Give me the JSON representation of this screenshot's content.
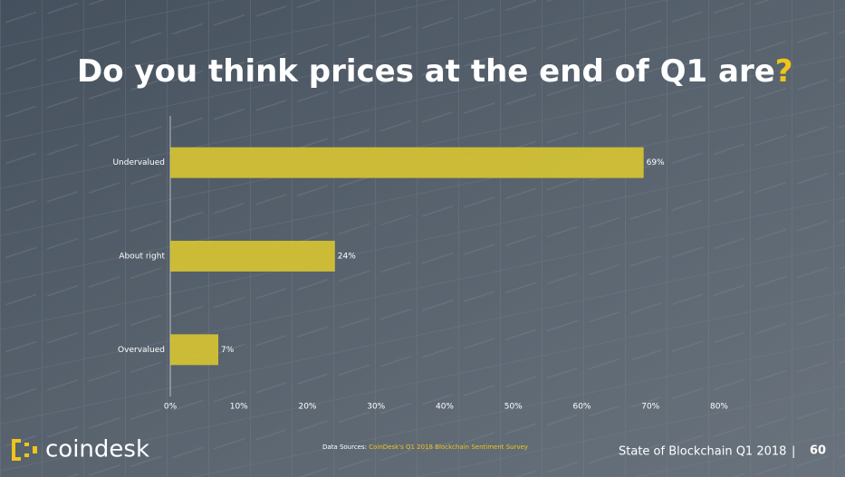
{
  "chart_data": {
    "type": "hbar",
    "title": "Do you think prices at the end of Q1 are",
    "title_punctuation": "?",
    "categories": [
      "Undervalued",
      "About right",
      "Overvalued"
    ],
    "values": [
      69,
      24,
      7
    ],
    "value_labels": [
      "69%",
      "24%",
      "7%"
    ],
    "color": "#d8c531",
    "xlim": [
      0,
      80
    ],
    "xticks": [
      {
        "value": 0,
        "label": "0%"
      },
      {
        "value": 10,
        "label": "10%"
      },
      {
        "value": 20,
        "label": "20%"
      },
      {
        "value": 30,
        "label": "30%"
      },
      {
        "value": 40,
        "label": "40%"
      },
      {
        "value": 50,
        "label": "50%"
      },
      {
        "value": 60,
        "label": "60%"
      },
      {
        "value": 70,
        "label": "70%"
      },
      {
        "value": 80,
        "label": "80%"
      }
    ],
    "source_prefix": "Data Sources:",
    "source": "CoinDesk's Q1 2018 Blockchain Sentiment Survey"
  },
  "footer": {
    "brand": "coindesk",
    "report": "State of Blockchain Q1 2018",
    "separator": "|",
    "page": "60"
  }
}
